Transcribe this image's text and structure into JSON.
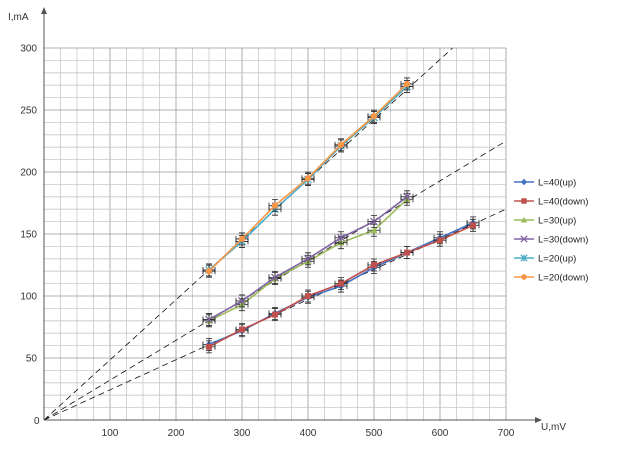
{
  "chart_data": {
    "type": "line",
    "title": "",
    "xlabel": "U,mV",
    "ylabel": "I,mA",
    "xlim": [
      0,
      700
    ],
    "ylim": [
      0,
      300
    ],
    "x_ticks": [
      100,
      200,
      300,
      400,
      500,
      600,
      700
    ],
    "y_ticks": [
      50,
      100,
      150,
      200,
      250,
      300
    ],
    "origin_label": "0",
    "grid": true,
    "legend_position": "right",
    "series": [
      {
        "name": "L=40(up)",
        "color": "#4472c4",
        "marker": "diamond",
        "x": [
          250,
          300,
          350,
          400,
          450,
          500,
          550,
          600,
          650
        ],
        "y": [
          61,
          72,
          86,
          99,
          108,
          123,
          135,
          147,
          159
        ]
      },
      {
        "name": "L=40(down)",
        "color": "#c0504d",
        "marker": "square",
        "x": [
          250,
          300,
          350,
          400,
          450,
          500,
          550,
          600,
          650
        ],
        "y": [
          59,
          73,
          85,
          100,
          110,
          125,
          135,
          145,
          157
        ]
      },
      {
        "name": "L=30(up)",
        "color": "#9bbb59",
        "marker": "triangle",
        "x": [
          250,
          300,
          350,
          400,
          450,
          500,
          550
        ],
        "y": [
          80,
          93,
          114,
          128,
          143,
          153,
          178
        ]
      },
      {
        "name": "L=30(down)",
        "color": "#8064a2",
        "marker": "x",
        "x": [
          250,
          300,
          350,
          400,
          450,
          500,
          550
        ],
        "y": [
          81,
          96,
          115,
          130,
          147,
          160,
          180
        ]
      },
      {
        "name": "L=20(up)",
        "color": "#4bacc6",
        "marker": "star",
        "x": [
          250,
          300,
          350,
          400,
          450,
          500,
          550
        ],
        "y": [
          121,
          144,
          170,
          194,
          221,
          244,
          269
        ]
      },
      {
        "name": "L=20(down)",
        "color": "#f79646",
        "marker": "circle",
        "x": [
          250,
          300,
          350,
          400,
          450,
          500,
          550
        ],
        "y": [
          120,
          146,
          173,
          195,
          222,
          245,
          271
        ]
      }
    ],
    "trend_lines": [
      {
        "style": "dashed",
        "color": "#111111",
        "slope": 0.4846
      },
      {
        "style": "dashed",
        "color": "#111111",
        "slope": 0.3214
      },
      {
        "style": "dashed",
        "color": "#111111",
        "slope": 0.2429
      }
    ]
  }
}
